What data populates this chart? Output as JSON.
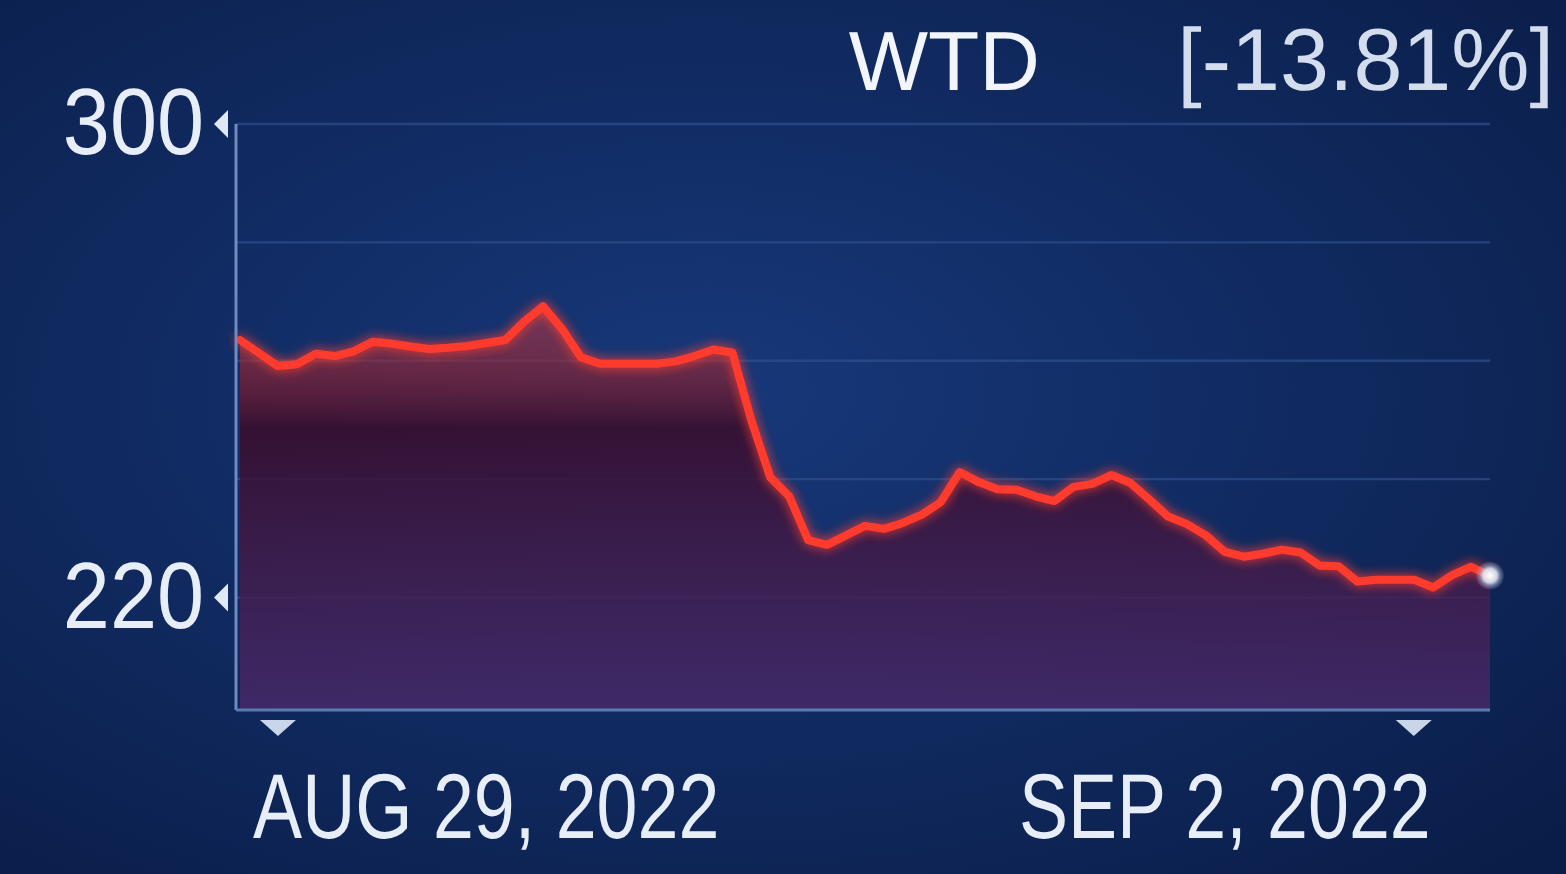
{
  "chart_data": {
    "type": "area",
    "title": "WTD",
    "subtitle": "[-13.81%]",
    "categories": [
      null,
      null,
      null,
      null,
      null,
      null,
      null,
      null,
      null,
      null,
      null,
      null,
      null,
      "AUG 29, 2022",
      null,
      null,
      null,
      null,
      null,
      null,
      null,
      null,
      null,
      null,
      null,
      null,
      null,
      null,
      null,
      null,
      null,
      null,
      null,
      null,
      null,
      null,
      null,
      null,
      null,
      null,
      null,
      null,
      null,
      null,
      null,
      null,
      null,
      null,
      null,
      null,
      null,
      null,
      "SEP 2, 2022",
      null,
      null,
      null,
      null,
      null,
      null,
      null,
      null,
      null,
      null,
      null,
      null,
      null,
      null
    ],
    "series": [
      {
        "color": "#ff3b2f",
        "values": [
          263.5,
          261.3,
          259.1,
          259.4,
          261.2,
          260.8,
          261.6,
          263.2,
          262.9,
          262.4,
          262.0,
          262.2,
          262.5,
          263.0,
          263.5,
          266.6,
          269.2,
          265.4,
          260.6,
          259.5,
          259.5,
          259.5,
          259.5,
          259.9,
          260.8,
          261.9,
          261.4,
          249.9,
          240.3,
          237.1,
          229.7,
          228.9,
          230.5,
          232.1,
          231.6,
          232.6,
          234.0,
          236.1,
          241.2,
          239.5,
          238.3,
          238.2,
          237.1,
          236.3,
          238.7,
          239.2,
          240.7,
          239.4,
          236.6,
          233.7,
          232.4,
          230.5,
          227.7,
          226.9,
          227.4,
          228.1,
          227.6,
          225.4,
          225.3,
          222.7,
          223.0,
          223.0,
          223.0,
          221.7,
          223.8,
          225.2,
          223.7
        ]
      }
    ],
    "ylim": [
      201,
      300
    ],
    "yticks": [
      220,
      {
        "value": 240,
        "label": null
      },
      {
        "value": 260,
        "label": null
      },
      {
        "value": 280,
        "label": null
      },
      300
    ],
    "grid": "y"
  }
}
